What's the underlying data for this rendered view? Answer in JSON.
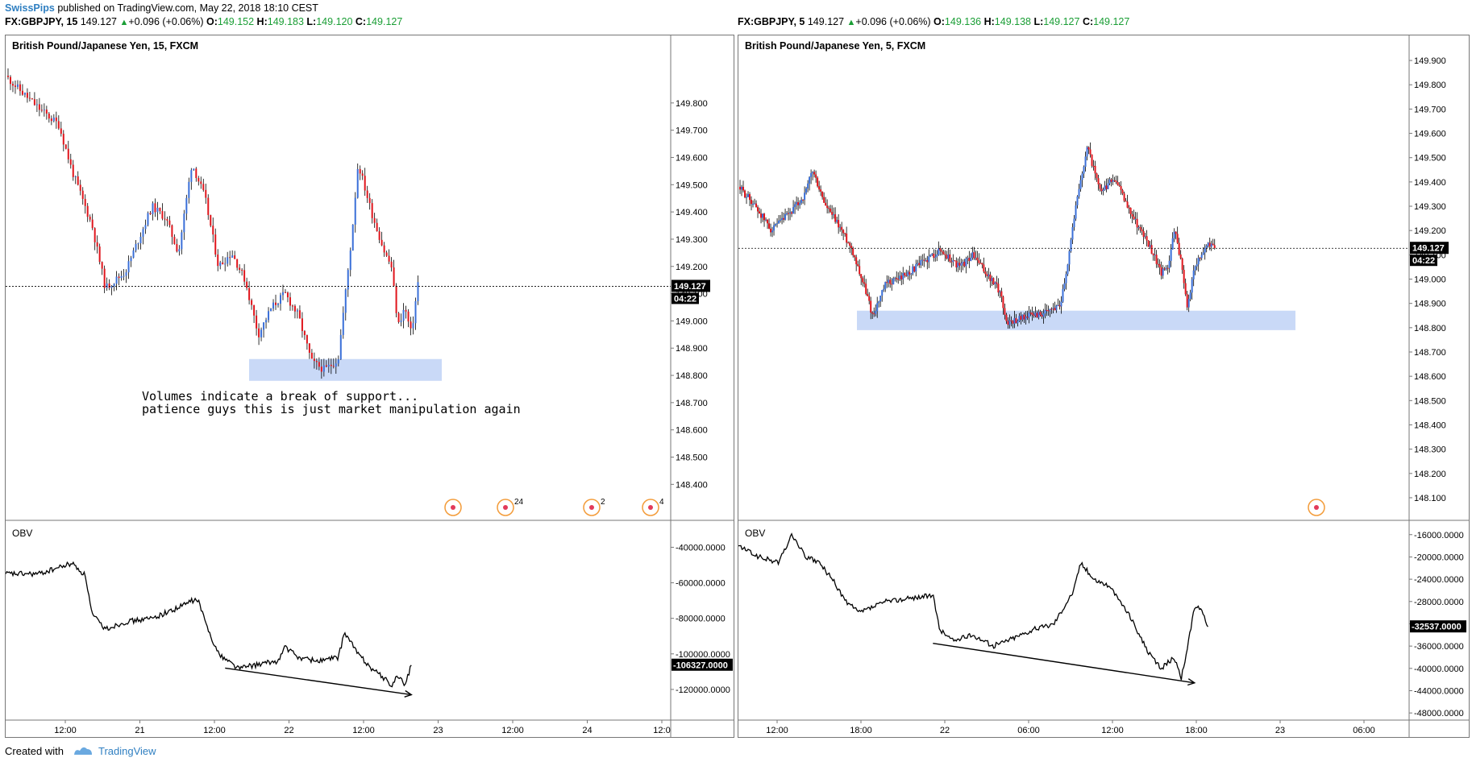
{
  "header": {
    "author": "SwissPips",
    "published_text": "published on TradingView.com, May 22, 2018 18:10 CEST"
  },
  "footer": {
    "created_with": "Created with",
    "brand": "TradingView"
  },
  "colors": {
    "up": "#3a6fd8",
    "down": "#e0151c",
    "zone": "#c9d9f7",
    "axis": "#777777"
  },
  "left_panel": {
    "symbol": "FX:GBPJPY, 15",
    "price": "149.127",
    "arrow": "▲",
    "change": "+0.096 (+0.06%)",
    "o_label": "O:",
    "o": "149.152",
    "h_label": "H:",
    "h": "149.183",
    "l_label": "L:",
    "l": "149.120",
    "c_label": "C:",
    "c": "149.127",
    "chart_title": "British Pound/Japanese Yen, 15, FXCM",
    "price_tag": "149.127",
    "countdown": "04:22",
    "annotation_line1": "Volumes indicate a break of support...",
    "annotation_line2": "patience guys this is just market manipulation again",
    "obv_label": "OBV",
    "obv_tag": "-106327.0000",
    "events": [
      {
        "badge": ""
      },
      {
        "badge": "24"
      },
      {
        "badge": "2"
      },
      {
        "badge": "4"
      }
    ]
  },
  "right_panel": {
    "symbol": "FX:GBPJPY, 5",
    "price": "149.127",
    "arrow": "▲",
    "change": "+0.096 (+0.06%)",
    "o_label": "O:",
    "o": "149.136",
    "h_label": "H:",
    "h": "149.138",
    "l_label": "L:",
    "l": "149.127",
    "c_label": "C:",
    "c": "149.127",
    "chart_title": "British Pound/Japanese Yen, 5, FXCM",
    "price_tag": "149.127",
    "countdown": "04:22",
    "obv_label": "OBV",
    "obv_tag": "-32537.0000"
  },
  "chart_data": [
    {
      "type": "candlestick",
      "title": "British Pound/Japanese Yen, 15, FXCM",
      "symbol": "FX:GBPJPY",
      "interval": "15",
      "ylim": [
        148.33,
        149.9
      ],
      "y_ticks": [
        "149.800",
        "149.700",
        "149.600",
        "149.500",
        "149.400",
        "149.300",
        "149.200",
        "149.100",
        "149.000",
        "148.900",
        "148.800",
        "148.700",
        "148.600",
        "148.500",
        "148.400"
      ],
      "x_ticks": [
        "12:00",
        "21",
        "12:00",
        "22",
        "12:00",
        "23",
        "12:00",
        "24",
        "12:0"
      ],
      "last_price": 149.127,
      "price_path": [
        [
          0,
          149.9
        ],
        [
          0.02,
          149.85
        ],
        [
          0.05,
          149.78
        ],
        [
          0.08,
          149.72
        ],
        [
          0.1,
          149.55
        ],
        [
          0.13,
          149.35
        ],
        [
          0.15,
          149.12
        ],
        [
          0.18,
          149.18
        ],
        [
          0.2,
          149.3
        ],
        [
          0.22,
          149.42
        ],
        [
          0.24,
          149.38
        ],
        [
          0.26,
          149.25
        ],
        [
          0.28,
          149.58
        ],
        [
          0.3,
          149.45
        ],
        [
          0.32,
          149.2
        ],
        [
          0.34,
          149.25
        ],
        [
          0.36,
          149.15
        ],
        [
          0.38,
          148.95
        ],
        [
          0.4,
          149.05
        ],
        [
          0.42,
          149.1
        ],
        [
          0.44,
          149.02
        ],
        [
          0.46,
          148.85
        ],
        [
          0.48,
          148.82
        ],
        [
          0.5,
          148.86
        ],
        [
          0.52,
          149.3
        ],
        [
          0.53,
          149.58
        ],
        [
          0.55,
          149.4
        ],
        [
          0.57,
          149.25
        ],
        [
          0.58,
          149.2
        ],
        [
          0.59,
          148.98
        ],
        [
          0.6,
          149.05
        ],
        [
          0.61,
          148.95
        ],
        [
          0.62,
          149.14
        ]
      ],
      "support_zone": [
        148.78,
        148.86
      ],
      "obv": {
        "ylim": [
          -135000,
          -33000
        ],
        "y_ticks": [
          "-40000.0000",
          "-60000.0000",
          "-80000.0000",
          "-100000.0000",
          "-120000.0000"
        ],
        "last": -106327,
        "path": [
          [
            0,
            -55000
          ],
          [
            0.05,
            -55000
          ],
          [
            0.1,
            -49000
          ],
          [
            0.12,
            -56000
          ],
          [
            0.13,
            -78000
          ],
          [
            0.15,
            -86000
          ],
          [
            0.18,
            -82000
          ],
          [
            0.22,
            -80000
          ],
          [
            0.26,
            -74000
          ],
          [
            0.28,
            -70000
          ],
          [
            0.29,
            -70000
          ],
          [
            0.3,
            -82000
          ],
          [
            0.32,
            -100000
          ],
          [
            0.35,
            -108000
          ],
          [
            0.38,
            -106000
          ],
          [
            0.41,
            -104000
          ],
          [
            0.42,
            -96000
          ],
          [
            0.44,
            -102000
          ],
          [
            0.47,
            -104000
          ],
          [
            0.5,
            -102000
          ],
          [
            0.51,
            -88000
          ],
          [
            0.53,
            -100000
          ],
          [
            0.55,
            -108000
          ],
          [
            0.57,
            -114000
          ],
          [
            0.58,
            -118000
          ],
          [
            0.59,
            -112000
          ],
          [
            0.6,
            -118000
          ],
          [
            0.61,
            -106327
          ]
        ],
        "divergence_line": [
          [
            0.33,
            -108000
          ],
          [
            0.61,
            -123000
          ]
        ]
      }
    },
    {
      "type": "candlestick",
      "title": "British Pound/Japanese Yen, 5, FXCM",
      "symbol": "FX:GBPJPY",
      "interval": "5",
      "ylim": [
        148.07,
        149.95
      ],
      "y_ticks": [
        "149.900",
        "149.800",
        "149.700",
        "149.600",
        "149.500",
        "149.400",
        "149.300",
        "149.200",
        "149.100",
        "149.000",
        "148.900",
        "148.800",
        "148.700",
        "148.600",
        "148.500",
        "148.400",
        "148.300",
        "148.200",
        "148.100"
      ],
      "x_ticks": [
        "12:00",
        "18:00",
        "22",
        "06:00",
        "12:00",
        "18:00",
        "23",
        "06:00"
      ],
      "last_price": 149.127,
      "price_path": [
        [
          0,
          149.38
        ],
        [
          0.02,
          149.32
        ],
        [
          0.05,
          149.2
        ],
        [
          0.08,
          149.28
        ],
        [
          0.1,
          149.35
        ],
        [
          0.11,
          149.45
        ],
        [
          0.13,
          149.3
        ],
        [
          0.15,
          149.22
        ],
        [
          0.17,
          149.12
        ],
        [
          0.19,
          148.95
        ],
        [
          0.2,
          148.85
        ],
        [
          0.22,
          148.98
        ],
        [
          0.25,
          149.02
        ],
        [
          0.28,
          149.08
        ],
        [
          0.3,
          149.12
        ],
        [
          0.33,
          149.05
        ],
        [
          0.35,
          149.1
        ],
        [
          0.37,
          149.02
        ],
        [
          0.39,
          148.95
        ],
        [
          0.4,
          148.82
        ],
        [
          0.43,
          148.85
        ],
        [
          0.46,
          148.86
        ],
        [
          0.48,
          148.9
        ],
        [
          0.49,
          149.05
        ],
        [
          0.5,
          149.25
        ],
        [
          0.51,
          149.4
        ],
        [
          0.52,
          149.55
        ],
        [
          0.53,
          149.45
        ],
        [
          0.54,
          149.35
        ],
        [
          0.56,
          149.42
        ],
        [
          0.58,
          149.3
        ],
        [
          0.6,
          149.2
        ],
        [
          0.62,
          149.1
        ],
        [
          0.63,
          149.02
        ],
        [
          0.64,
          149.05
        ],
        [
          0.65,
          149.2
        ],
        [
          0.66,
          149.08
        ],
        [
          0.67,
          148.88
        ],
        [
          0.68,
          149.05
        ],
        [
          0.7,
          149.15
        ],
        [
          0.71,
          149.127
        ]
      ],
      "support_zone": [
        148.79,
        148.87
      ],
      "obv": {
        "ylim": [
          -48700,
          -14300
        ],
        "y_ticks": [
          "-16000.0000",
          "-20000.0000",
          "-24000.0000",
          "-28000.0000",
          "-32000.0000",
          "-36000.0000",
          "-40000.0000",
          "-44000.0000",
          "-48000.0000"
        ],
        "last": -32537,
        "path": [
          [
            0,
            -18000
          ],
          [
            0.03,
            -20000
          ],
          [
            0.06,
            -21000
          ],
          [
            0.08,
            -16000
          ],
          [
            0.1,
            -20000
          ],
          [
            0.12,
            -21000
          ],
          [
            0.14,
            -24000
          ],
          [
            0.16,
            -28000
          ],
          [
            0.18,
            -30000
          ],
          [
            0.2,
            -29000
          ],
          [
            0.22,
            -28000
          ],
          [
            0.28,
            -27000
          ],
          [
            0.29,
            -27000
          ],
          [
            0.3,
            -33000
          ],
          [
            0.32,
            -35000
          ],
          [
            0.35,
            -34000
          ],
          [
            0.38,
            -36000
          ],
          [
            0.4,
            -35000
          ],
          [
            0.44,
            -33000
          ],
          [
            0.47,
            -32000
          ],
          [
            0.5,
            -26000
          ],
          [
            0.51,
            -21000
          ],
          [
            0.53,
            -24000
          ],
          [
            0.55,
            -25000
          ],
          [
            0.57,
            -28000
          ],
          [
            0.59,
            -32000
          ],
          [
            0.61,
            -37000
          ],
          [
            0.63,
            -40000
          ],
          [
            0.65,
            -38000
          ],
          [
            0.66,
            -42000
          ],
          [
            0.67,
            -36000
          ],
          [
            0.68,
            -29000
          ],
          [
            0.69,
            -29000
          ],
          [
            0.7,
            -32537
          ]
        ],
        "divergence_line": [
          [
            0.29,
            -35500
          ],
          [
            0.68,
            -42600
          ]
        ]
      }
    }
  ]
}
